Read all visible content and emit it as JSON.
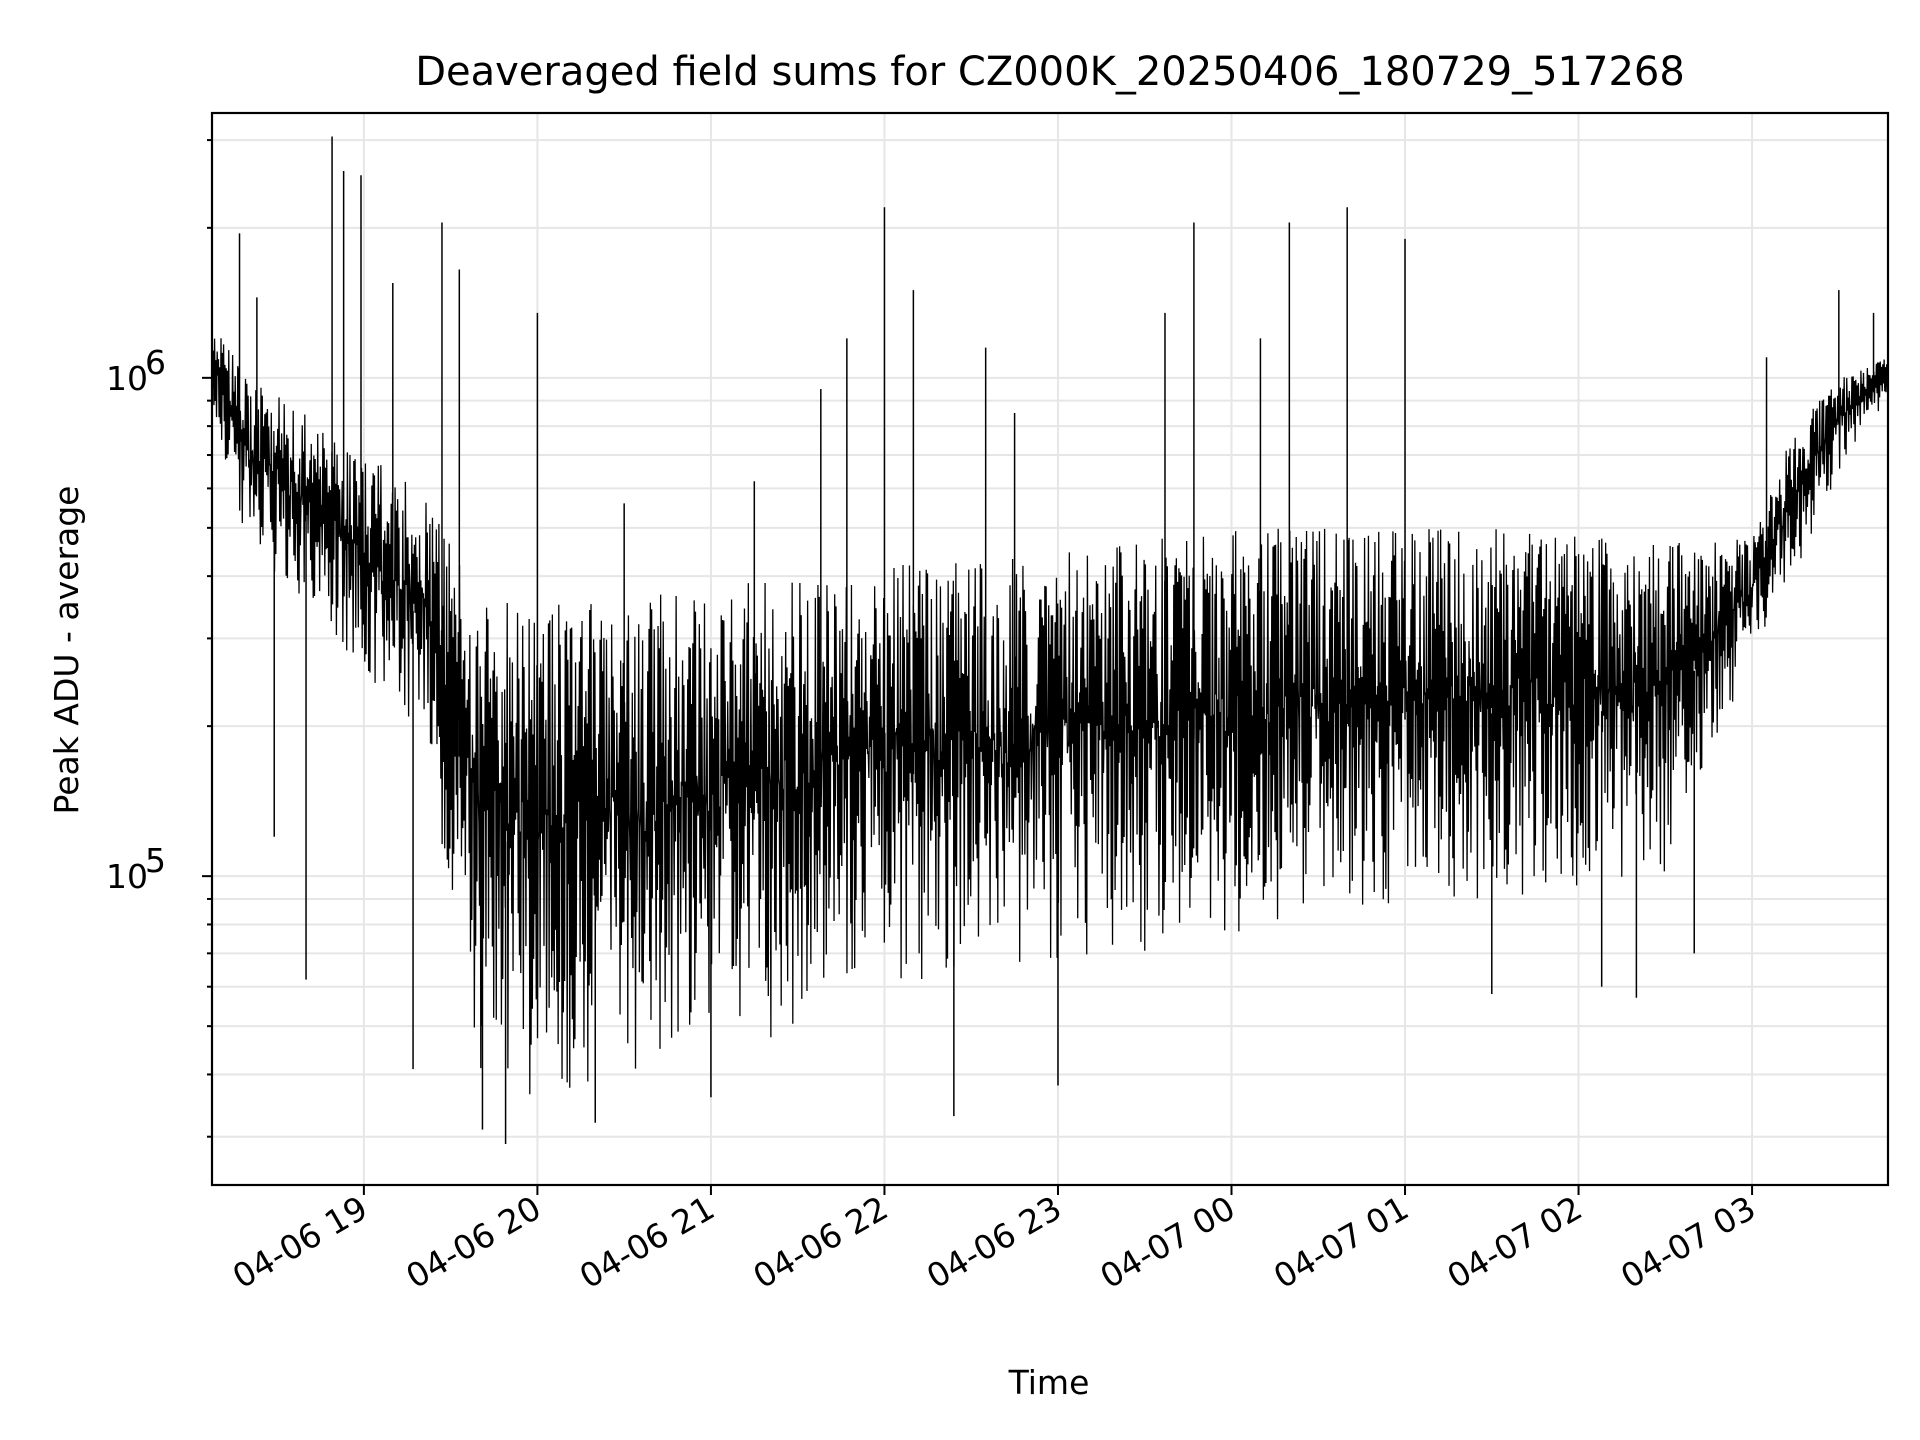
{
  "chart_data": {
    "type": "line",
    "title": "Deaveraged field sums for CZ000K_20250406_180729_517268",
    "xlabel": "Time",
    "ylabel": "Peak ADU - average",
    "y_scale": "log",
    "ylim": [
      24000,
      3400000
    ],
    "xlim": [
      "2025-04-06 18:07:29",
      "2025-04-07 03:47:00"
    ],
    "grid": true,
    "line_color": "#000000",
    "x_ticks": [
      {
        "t": "2025-04-06 19:00",
        "label": "04-06 19"
      },
      {
        "t": "2025-04-06 20:00",
        "label": "04-06 20"
      },
      {
        "t": "2025-04-06 21:00",
        "label": "04-06 21"
      },
      {
        "t": "2025-04-06 22:00",
        "label": "04-06 22"
      },
      {
        "t": "2025-04-06 23:00",
        "label": "04-06 23"
      },
      {
        "t": "2025-04-07 00:00",
        "label": "04-07 00"
      },
      {
        "t": "2025-04-07 01:00",
        "label": "04-07 01"
      },
      {
        "t": "2025-04-07 02:00",
        "label": "04-07 02"
      },
      {
        "t": "2025-04-07 03:00",
        "label": "04-07 03"
      }
    ],
    "y_ticks": [
      {
        "value": 100000,
        "base": "10",
        "exp": "5"
      },
      {
        "value": 1000000,
        "base": "10",
        "exp": "6"
      }
    ],
    "series": [
      {
        "envelope_x": [
          "2025-04-06 18:07",
          "2025-04-06 18:20",
          "2025-04-06 18:40",
          "2025-04-06 19:00",
          "2025-04-06 19:20",
          "2025-04-06 19:40",
          "2025-04-06 20:00",
          "2025-04-06 20:30",
          "2025-04-06 21:00",
          "2025-04-06 21:30",
          "2025-04-06 22:00",
          "2025-04-06 22:30",
          "2025-04-06 23:00",
          "2025-04-06 23:30",
          "2025-04-07 00:00",
          "2025-04-07 00:30",
          "2025-04-07 01:00",
          "2025-04-07 01:30",
          "2025-04-07 02:00",
          "2025-04-07 02:30",
          "2025-04-07 03:00",
          "2025-04-07 03:15",
          "2025-04-07 03:30",
          "2025-04-07 03:47"
        ],
        "envelope_high": [
          1300000,
          1000000,
          850000,
          700000,
          600000,
          380000,
          350000,
          360000,
          380000,
          400000,
          420000,
          430000,
          450000,
          480000,
          500000,
          500000,
          500000,
          500000,
          480000,
          470000,
          480000,
          800000,
          1000000,
          1100000
        ],
        "envelope_low": [
          900000,
          450000,
          350000,
          250000,
          180000,
          40000,
          35000,
          40000,
          42000,
          50000,
          60000,
          62000,
          65000,
          70000,
          75000,
          80000,
          85000,
          90000,
          95000,
          100000,
          280000,
          400000,
          650000,
          900000
        ],
        "spikes": [
          {
            "t": "2025-04-06 18:17",
            "value": 1950000
          },
          {
            "t": "2025-04-06 18:23",
            "value": 1450000
          },
          {
            "t": "2025-04-06 18:29",
            "value": 120000
          },
          {
            "t": "2025-04-06 18:40",
            "value": 62000
          },
          {
            "t": "2025-04-06 18:49",
            "value": 3050000
          },
          {
            "t": "2025-04-06 18:53",
            "value": 2600000
          },
          {
            "t": "2025-04-06 18:59",
            "value": 2550000
          },
          {
            "t": "2025-04-06 19:10",
            "value": 1550000
          },
          {
            "t": "2025-04-06 19:17",
            "value": 41000
          },
          {
            "t": "2025-04-06 19:27",
            "value": 2050000
          },
          {
            "t": "2025-04-06 19:33",
            "value": 1650000
          },
          {
            "t": "2025-04-06 19:41",
            "value": 31000
          },
          {
            "t": "2025-04-06 19:49",
            "value": 29000
          },
          {
            "t": "2025-04-06 20:00",
            "value": 1350000
          },
          {
            "t": "2025-04-06 20:20",
            "value": 32000
          },
          {
            "t": "2025-04-06 20:30",
            "value": 560000
          },
          {
            "t": "2025-04-06 21:00",
            "value": 36000
          },
          {
            "t": "2025-04-06 21:15",
            "value": 620000
          },
          {
            "t": "2025-04-06 21:38",
            "value": 950000
          },
          {
            "t": "2025-04-06 21:47",
            "value": 1200000
          },
          {
            "t": "2025-04-06 22:00",
            "value": 2200000
          },
          {
            "t": "2025-04-06 22:10",
            "value": 1500000
          },
          {
            "t": "2025-04-06 22:24",
            "value": 33000
          },
          {
            "t": "2025-04-06 22:35",
            "value": 1150000
          },
          {
            "t": "2025-04-06 22:45",
            "value": 850000
          },
          {
            "t": "2025-04-06 23:00",
            "value": 38000
          },
          {
            "t": "2025-04-06 23:37",
            "value": 1350000
          },
          {
            "t": "2025-04-06 23:47",
            "value": 2050000
          },
          {
            "t": "2025-04-07 00:10",
            "value": 1200000
          },
          {
            "t": "2025-04-07 00:20",
            "value": 2050000
          },
          {
            "t": "2025-04-07 00:40",
            "value": 2200000
          },
          {
            "t": "2025-04-07 01:00",
            "value": 1900000
          },
          {
            "t": "2025-04-07 01:30",
            "value": 58000
          },
          {
            "t": "2025-04-07 02:08",
            "value": 60000
          },
          {
            "t": "2025-04-07 02:20",
            "value": 57000
          },
          {
            "t": "2025-04-07 02:40",
            "value": 70000
          },
          {
            "t": "2025-04-07 03:05",
            "value": 1100000
          },
          {
            "t": "2025-04-07 03:30",
            "value": 1500000
          },
          {
            "t": "2025-04-07 03:42",
            "value": 1350000
          }
        ]
      }
    ]
  }
}
